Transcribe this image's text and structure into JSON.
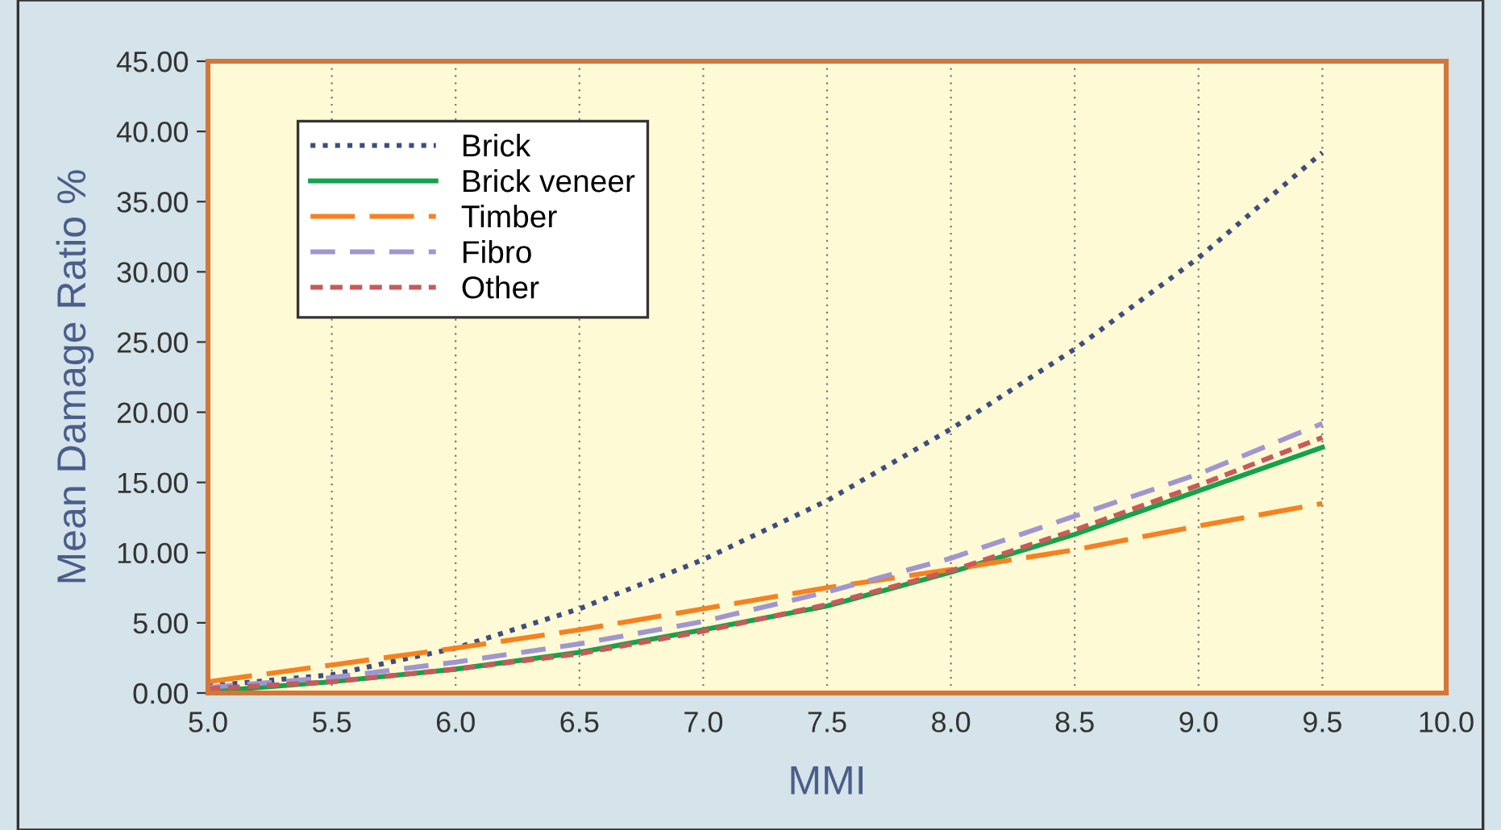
{
  "chart_data": {
    "type": "line",
    "xlabel": "MMI",
    "ylabel": "Mean Damage Ratio %",
    "x": [
      5.0,
      5.5,
      6.0,
      6.5,
      7.0,
      7.5,
      8.0,
      8.5,
      9.0,
      9.5
    ],
    "series": [
      {
        "name": "Brick",
        "color": "#3d4e7e",
        "line_style": "dotted",
        "values": [
          0.5,
          1.3,
          3.2,
          6.0,
          9.5,
          13.7,
          18.8,
          24.5,
          31.0,
          38.5
        ]
      },
      {
        "name": "Brick veneer",
        "color": "#12a44a",
        "line_style": "solid",
        "values": [
          0.1,
          0.8,
          1.7,
          2.9,
          4.5,
          6.2,
          8.6,
          11.3,
          14.4,
          17.5
        ]
      },
      {
        "name": "Timber",
        "color": "#f58220",
        "line_style": "longdash",
        "values": [
          0.8,
          2.0,
          3.2,
          4.5,
          6.0,
          7.5,
          8.8,
          10.2,
          11.9,
          13.5
        ]
      },
      {
        "name": "Fibro",
        "color": "#a096cf",
        "line_style": "dashed",
        "values": [
          0.4,
          1.1,
          2.2,
          3.5,
          5.1,
          7.2,
          9.6,
          12.6,
          15.6,
          19.2
        ]
      },
      {
        "name": "Other",
        "color": "#c9595a",
        "line_style": "shortdash",
        "values": [
          0.3,
          0.8,
          1.7,
          2.8,
          4.4,
          6.3,
          8.7,
          11.6,
          14.8,
          18.2
        ]
      }
    ],
    "xlim": [
      5.0,
      10.0
    ],
    "xticks": [
      {
        "value": 5.0,
        "label": "5.0"
      },
      {
        "value": 5.5,
        "label": "5.5"
      },
      {
        "value": 6.0,
        "label": "6.0"
      },
      {
        "value": 6.5,
        "label": "6.5"
      },
      {
        "value": 7.0,
        "label": "7.0"
      },
      {
        "value": 7.5,
        "label": "7.5"
      },
      {
        "value": 8.0,
        "label": "8.0"
      },
      {
        "value": 8.5,
        "label": "8.5"
      },
      {
        "value": 9.0,
        "label": "9.0"
      },
      {
        "value": 9.5,
        "label": "9.5"
      },
      {
        "value": 10.0,
        "label": "10.0"
      }
    ],
    "ylim": [
      0,
      45
    ],
    "yticks": [
      {
        "value": 0,
        "label": "0.00"
      },
      {
        "value": 5,
        "label": "5.00"
      },
      {
        "value": 10,
        "label": "10.00"
      },
      {
        "value": 15,
        "label": "15.00"
      },
      {
        "value": 20,
        "label": "20.00"
      },
      {
        "value": 25,
        "label": "25.00"
      },
      {
        "value": 30,
        "label": "30.00"
      },
      {
        "value": 35,
        "label": "35.00"
      },
      {
        "value": 40,
        "label": "40.00"
      },
      {
        "value": 45,
        "label": "45.00"
      }
    ],
    "grid": "x",
    "legend": "top left",
    "marker": "none"
  }
}
